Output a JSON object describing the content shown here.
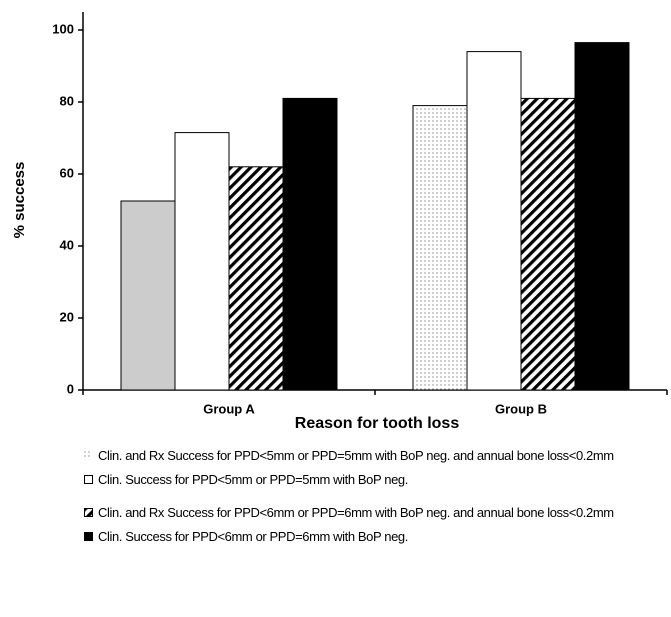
{
  "chart_data": {
    "type": "bar",
    "y_label": "% success",
    "x_label": "Reason for tooth loss",
    "categories": [
      "Group A",
      "Group B"
    ],
    "series": [
      {
        "name": "Clin. and Rx Success for PPD<5mm or PPD=5mm with BoP neg. and annual bone loss<0.2mm",
        "color": "#cccccc",
        "patterns": [
          "solid",
          "dots"
        ],
        "values": [
          52.5,
          79
        ]
      },
      {
        "name": "Clin. Success for PPD<5mm or PPD=5mm with BoP neg.",
        "color": "#ffffff",
        "patterns": [
          "solid",
          "solid"
        ],
        "values": [
          71.5,
          94
        ]
      },
      {
        "name": "Clin. and Rx Success for PPD<6mm or PPD=6mm with BoP neg. and annual bone loss<0.2mm",
        "color": "#ffffff",
        "patterns": [
          "hatch",
          "hatch"
        ],
        "values": [
          62,
          81
        ]
      },
      {
        "name": "Clin. Success for PPD<6mm or PPD=6mm with BoP neg.",
        "color": "#000000",
        "patterns": [
          "solid",
          "solid"
        ],
        "values": [
          81,
          96.5
        ]
      }
    ],
    "ylim": [
      0,
      105
    ],
    "yticks": [
      0,
      20,
      40,
      60,
      80,
      100
    ],
    "grid": false
  }
}
